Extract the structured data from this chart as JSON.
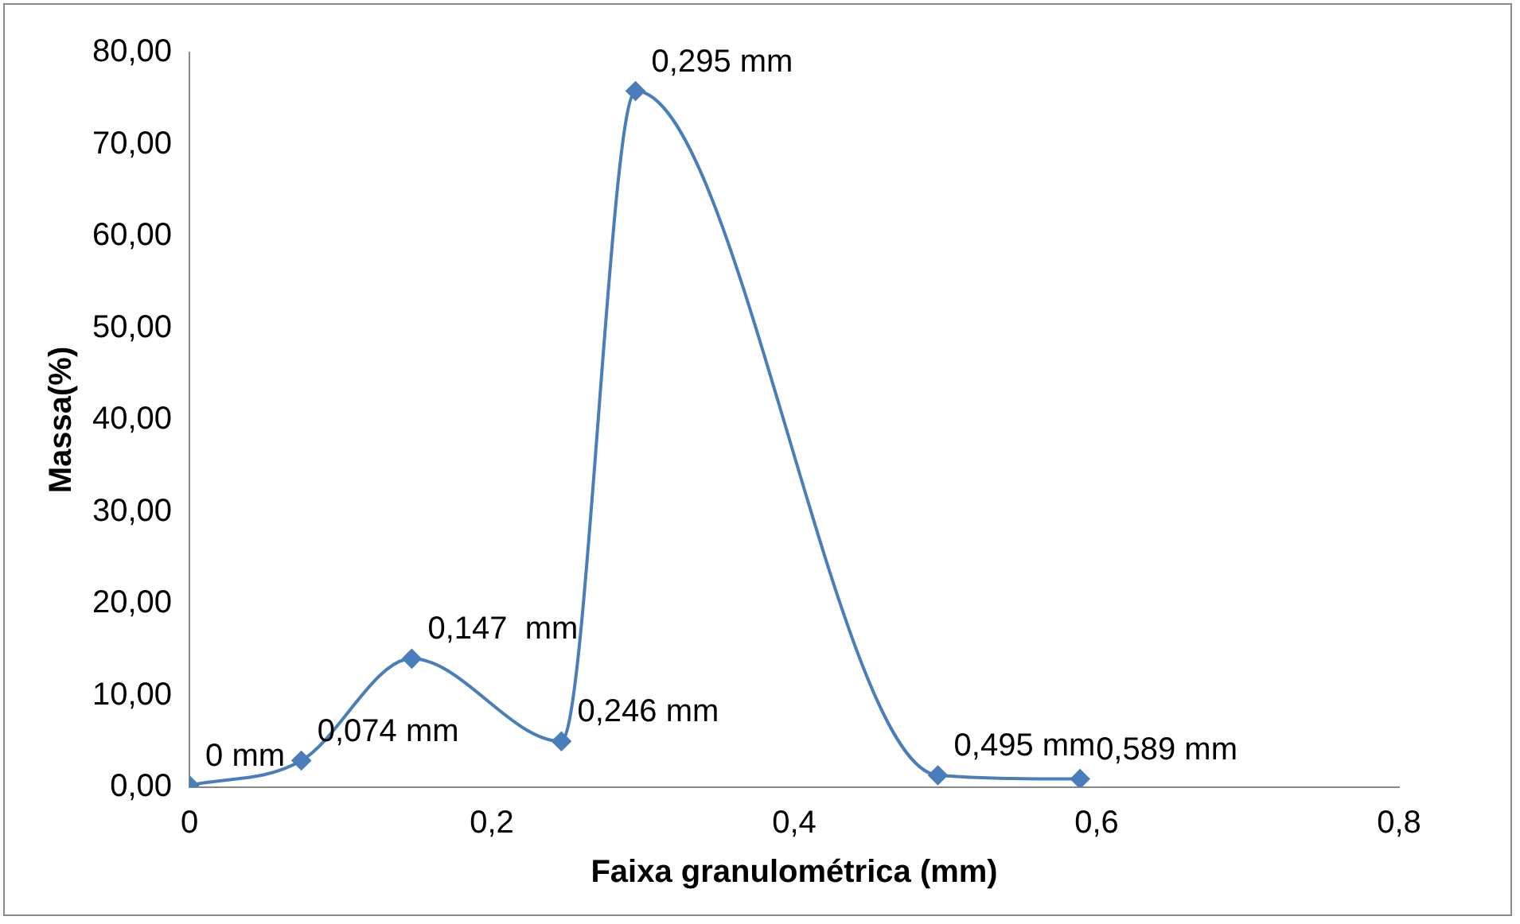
{
  "chart_data": {
    "type": "line",
    "xlabel": "Faixa granulométrica (mm)",
    "ylabel": "Massa(%)",
    "x": [
      0,
      0.074,
      0.147,
      0.246,
      0.295,
      0.495,
      0.589
    ],
    "series": [
      {
        "color": "#4a7ebb",
        "values": [
          0.2,
          2.9,
          14.0,
          5.0,
          75.8,
          1.3,
          0.9
        ]
      }
    ],
    "xlim": [
      0,
      0.8
    ],
    "xticks": [
      0,
      {
        "value": 0.2,
        "label": "0,2"
      },
      {
        "value": 0.4,
        "label": "0,4"
      },
      {
        "value": 0.6,
        "label": "0,6"
      },
      {
        "value": 0.8,
        "label": "0,8"
      }
    ],
    "ylim": [
      0,
      80
    ],
    "yticks": [
      {
        "value": 0,
        "label": "0,00"
      },
      {
        "value": 10,
        "label": "10,00"
      },
      {
        "value": 20,
        "label": "20,00"
      },
      {
        "value": 30,
        "label": "30,00"
      },
      {
        "value": 40,
        "label": "40,00"
      },
      {
        "value": 50,
        "label": "50,00"
      },
      {
        "value": 60,
        "label": "60,00"
      },
      {
        "value": 70,
        "label": "70,00"
      },
      {
        "value": 80,
        "label": "80,00"
      }
    ],
    "annotations": [
      {
        "text": "0 mm",
        "x": 0,
        "y": 0.2
      },
      {
        "text": "0,074 mm",
        "x": 0.074,
        "y": 2.9
      },
      {
        "text": "0,147  mm",
        "x": 0.147,
        "y": 14.0
      },
      {
        "text": "0,246 mm",
        "x": 0.246,
        "y": 5.0
      },
      {
        "text": "0,295 mm",
        "x": 0.295,
        "y": 75.8
      },
      {
        "text": "0,495 mm",
        "x": 0.495,
        "y": 1.3
      },
      {
        "text": "0,589 mm",
        "x": 0.589,
        "y": 0.9
      }
    ],
    "grid": false,
    "legend": false,
    "marker": "diamond",
    "line_style": "solid"
  }
}
